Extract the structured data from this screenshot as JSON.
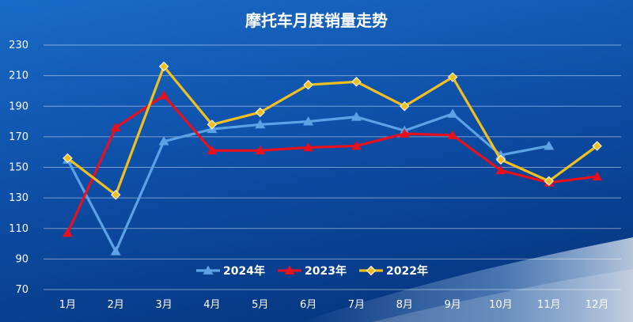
{
  "chart_data": {
    "type": "line",
    "title": "摩托车月度销量走势",
    "categories": [
      "1月",
      "2月",
      "3月",
      "4月",
      "5月",
      "6月",
      "7月",
      "8月",
      "9月",
      "10月",
      "11月",
      "12月"
    ],
    "ylim": [
      70,
      230
    ],
    "yticks": [
      70,
      90,
      110,
      130,
      150,
      170,
      190,
      210,
      230
    ],
    "grid": true,
    "legend_position": "bottom-center",
    "series": [
      {
        "name": "2024年",
        "color": "#5ba3e6",
        "marker": "triangle",
        "values": [
          155,
          95,
          167,
          175,
          178,
          180,
          183,
          174,
          185,
          158,
          164,
          null
        ]
      },
      {
        "name": "2023年",
        "color": "#e8101c",
        "marker": "triangle",
        "values": [
          107,
          176,
          197,
          161,
          161,
          163,
          164,
          172,
          171,
          148,
          140,
          144
        ]
      },
      {
        "name": "2022年",
        "color": "#f2c01e",
        "marker": "diamond",
        "values": [
          156,
          132,
          216,
          178,
          186,
          204,
          206,
          190,
          209,
          155,
          141,
          164
        ]
      }
    ]
  }
}
